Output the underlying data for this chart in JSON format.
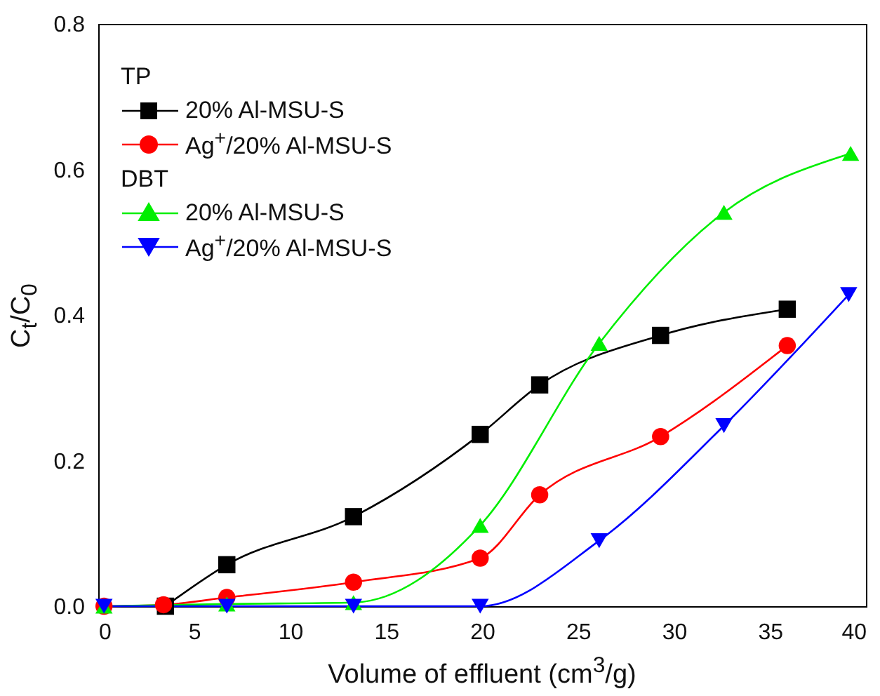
{
  "chart_data": {
    "type": "line",
    "xlabel": "Volume of effluent (cm$^{3}$/g)",
    "ylabel": "C$_{t}$/C$_{0}$",
    "xlim": [
      0,
      40
    ],
    "xticks": [
      0,
      5,
      10,
      15,
      20,
      25,
      30,
      35,
      40
    ],
    "ylim": [
      0,
      0.8
    ],
    "yticks": [
      {
        "value": 0,
        "label": "0.0"
      },
      {
        "value": 0.2,
        "label": "0.2"
      },
      {
        "value": 0.4,
        "label": "0.4"
      },
      {
        "value": 0.6,
        "label": "0.6"
      },
      {
        "value": 0.8,
        "label": "0.8"
      }
    ],
    "grid": false,
    "legend": "top left",
    "line_style": "solid",
    "annotations": [
      "TP",
      "DBT"
    ],
    "series": [
      {
        "name": "20% Al-MSU-S",
        "color": "#000000",
        "marker": "square",
        "x": [
          3.5,
          6.7,
          13.3,
          19.9,
          23.0,
          29.3,
          35.9
        ],
        "values": [
          0.0,
          0.057,
          0.123,
          0.236,
          0.304,
          0.372,
          0.408
        ]
      },
      {
        "name": "Ag$^{+}$/20% Al-MSU-S",
        "color": "#ff0000",
        "marker": "circle",
        "x": [
          0.3,
          3.4,
          6.7,
          13.3,
          19.9,
          23.0,
          29.3,
          35.9
        ],
        "values": [
          0.0,
          0.002,
          0.012,
          0.033,
          0.066,
          0.153,
          0.233,
          0.358
        ]
      },
      {
        "name": "20% Al-MSU-S",
        "color": "#00ee00",
        "marker": "triangle",
        "x": [
          0.3,
          6.7,
          13.3,
          19.9,
          26.1,
          32.6,
          39.2
        ],
        "values": [
          0.0,
          0.003,
          0.005,
          0.111,
          0.361,
          0.541,
          0.622
        ]
      },
      {
        "name": "Ag$^{+}$/20% Al-MSU-S",
        "color": "#0000ff",
        "marker": "triangle-down",
        "x": [
          0.3,
          6.7,
          13.3,
          19.9,
          26.1,
          32.6,
          39.1
        ],
        "values": [
          0.0,
          0.0,
          0.0,
          0.0,
          0.09,
          0.248,
          0.428
        ]
      }
    ]
  }
}
